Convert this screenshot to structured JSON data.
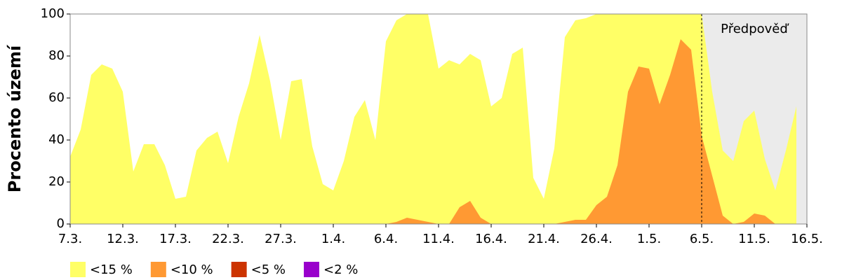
{
  "chart_data": {
    "type": "area",
    "ylabel": "Procento území",
    "annotation": {
      "text": "Předpověď",
      "from": "6.5.",
      "color": "#ebebeb"
    },
    "categories": [
      "7.3.",
      null,
      null,
      null,
      null,
      "12.3.",
      null,
      null,
      null,
      null,
      "17.3.",
      null,
      null,
      null,
      null,
      "22.3.",
      null,
      null,
      null,
      null,
      "27.3.",
      null,
      null,
      null,
      null,
      "1.4.",
      null,
      null,
      null,
      null,
      "6.4.",
      null,
      null,
      null,
      null,
      "11.4.",
      null,
      null,
      null,
      null,
      "16.4.",
      null,
      null,
      null,
      null,
      "21.4.",
      null,
      null,
      null,
      null,
      "26.4.",
      null,
      null,
      null,
      null,
      "1.5.",
      null,
      null,
      null,
      null,
      "6.5.",
      null,
      null,
      null,
      null,
      "11.5.",
      null,
      null,
      null,
      null,
      "16.5."
    ],
    "series": [
      {
        "name": "<15 %",
        "color": "#ffff66",
        "values": [
          32,
          45,
          71,
          76,
          74,
          63,
          25,
          38,
          38,
          28,
          12,
          13,
          35,
          41,
          44,
          29,
          51,
          67,
          90,
          68,
          40,
          68,
          69,
          37,
          19,
          16,
          30,
          51,
          59,
          40,
          87,
          97,
          100,
          100,
          100,
          74,
          78,
          76,
          81,
          78,
          56,
          60,
          81,
          84,
          22,
          12,
          36,
          89,
          97,
          98,
          100,
          100,
          100,
          100,
          100,
          100,
          100,
          100,
          100,
          100,
          100,
          63,
          35,
          30,
          49,
          54,
          31,
          16,
          35,
          56,
          null
        ]
      },
      {
        "name": "<10 %",
        "color": "#ff9933",
        "values": [
          0,
          0,
          0,
          0,
          0,
          0,
          0,
          0,
          0,
          0,
          0,
          0,
          0,
          0,
          0,
          0,
          0,
          0,
          0,
          0,
          0,
          0,
          0,
          0,
          0,
          0,
          0,
          0,
          0,
          0,
          0,
          1,
          3,
          2,
          1,
          0,
          0,
          8,
          11,
          3,
          0,
          0,
          0,
          0,
          0,
          0,
          0,
          1,
          2,
          2,
          9,
          13,
          28,
          63,
          75,
          74,
          57,
          71,
          88,
          83,
          42,
          23,
          4,
          0,
          1,
          5,
          4,
          0,
          0,
          0,
          null
        ]
      },
      {
        "name": "<5 %",
        "color": "#cc3300",
        "values": [
          0,
          0,
          0,
          0,
          0,
          0,
          0,
          0,
          0,
          0,
          0,
          0,
          0,
          0,
          0,
          0,
          0,
          0,
          0,
          0,
          0,
          0,
          0,
          0,
          0,
          0,
          0,
          0,
          0,
          0,
          0,
          0,
          0,
          0,
          0,
          0,
          0,
          0,
          0,
          0,
          0,
          0,
          0,
          0,
          0,
          0,
          0,
          0,
          0,
          0,
          0,
          0,
          0,
          0,
          0,
          0,
          0,
          0,
          0,
          0,
          0,
          0,
          0,
          0,
          0,
          0,
          0,
          0,
          0,
          0,
          null
        ]
      },
      {
        "name": "<2 %",
        "color": "#9900cc",
        "values": [
          0,
          0,
          0,
          0,
          0,
          0,
          0,
          0,
          0,
          0,
          0,
          0,
          0,
          0,
          0,
          0,
          0,
          0,
          0,
          0,
          0,
          0,
          0,
          0,
          0,
          0,
          0,
          0,
          0,
          0,
          0,
          0,
          0,
          0,
          0,
          0,
          0,
          0,
          0,
          0,
          0,
          0,
          0,
          0,
          0,
          0,
          0,
          0,
          0,
          0,
          0,
          0,
          0,
          0,
          0,
          0,
          0,
          0,
          0,
          0,
          0,
          0,
          0,
          0,
          0,
          0,
          0,
          0,
          0,
          0,
          null
        ]
      }
    ],
    "ylim": [
      0,
      100
    ],
    "yticks": [
      0,
      20,
      40,
      60,
      80,
      100
    ],
    "grid": false
  }
}
